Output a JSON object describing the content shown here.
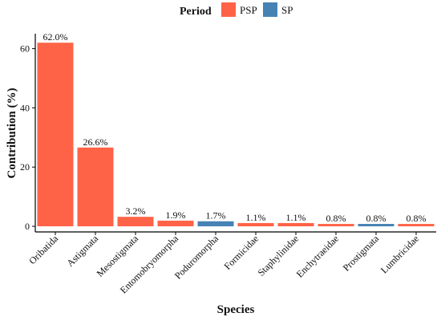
{
  "chart_data": {
    "type": "bar",
    "title": "",
    "xlabel": "Species",
    "ylabel": "Contribution (%)",
    "ylim": [
      0,
      65
    ],
    "yticks": [
      0,
      20,
      40,
      60
    ],
    "grid": false,
    "legend": {
      "title": "Period",
      "placement": "top",
      "entries": [
        {
          "name": "PSP",
          "color": "#FF6347"
        },
        {
          "name": "SP",
          "color": "#4682B4"
        }
      ]
    },
    "categories": [
      "Oribatida",
      "Astigmata",
      "Mesostigmata",
      "Entomobryomorpha",
      "Poduromorpha",
      "Formicidae",
      "Staphylinidae",
      "Enchytraeidae",
      "Prostigmata",
      "Lumbricidae"
    ],
    "values": [
      62.0,
      26.6,
      3.2,
      1.9,
      1.7,
      1.1,
      1.1,
      0.8,
      0.8,
      0.8
    ],
    "data_labels": [
      "62.0%",
      "26.6%",
      "3.2%",
      "1.9%",
      "1.7%",
      "1.1%",
      "1.1%",
      "0.8%",
      "0.8%",
      "0.8%"
    ],
    "period": [
      "PSP",
      "PSP",
      "PSP",
      "PSP",
      "SP",
      "PSP",
      "PSP",
      "PSP",
      "SP",
      "PSP"
    ]
  }
}
